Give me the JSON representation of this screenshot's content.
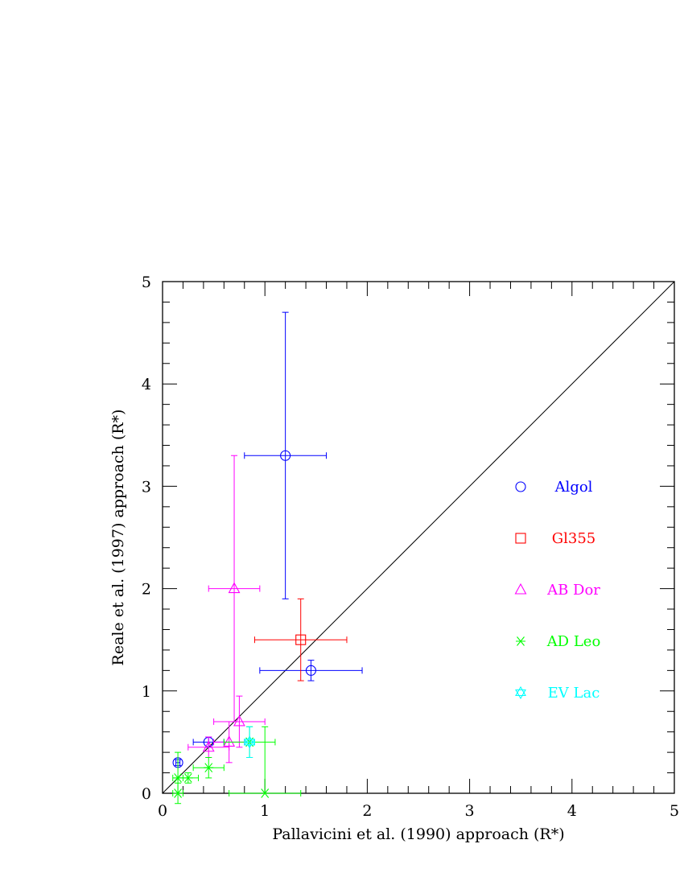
{
  "chart_data": {
    "type": "scatter",
    "xlabel": "Pallavicini et al. (1990) approach (R*)",
    "ylabel": "Reale et al. (1997) approach (R*)",
    "xlim": [
      0,
      5
    ],
    "ylim": [
      0,
      5
    ],
    "x_ticks": [
      "0",
      "1",
      "2",
      "3",
      "4",
      "5"
    ],
    "y_ticks": [
      "0",
      "1",
      "2",
      "3",
      "4",
      "5"
    ],
    "grid": false,
    "legend_position": "right-middle",
    "reference_line": {
      "type": "identity",
      "x": [
        0,
        5
      ],
      "y": [
        0,
        5
      ]
    },
    "series": [
      {
        "name": "Algol",
        "color": "#0000ff",
        "marker": "circle",
        "points": [
          {
            "x": 1.2,
            "xerr": [
              0.4,
              0.4
            ],
            "y": 3.3,
            "yerr": [
              1.4,
              1.4
            ]
          },
          {
            "x": 1.45,
            "xerr": [
              0.5,
              0.5
            ],
            "y": 1.2,
            "yerr": [
              0.1,
              0.1
            ]
          },
          {
            "x": 0.45,
            "xerr": [
              0.15,
              0.15
            ],
            "y": 0.5,
            "yerr": [
              0.05,
              0.05
            ]
          },
          {
            "x": 0.15,
            "xerr": [
              0.02,
              0.02
            ],
            "y": 0.3,
            "yerr": [
              0.03,
              0.03
            ]
          }
        ]
      },
      {
        "name": "Gl355",
        "color": "#ff0000",
        "marker": "square",
        "points": [
          {
            "x": 1.35,
            "xerr": [
              0.45,
              0.45
            ],
            "y": 1.5,
            "yerr": [
              0.4,
              0.4
            ]
          }
        ]
      },
      {
        "name": "AB Dor",
        "color": "#ff00ff",
        "marker": "triangle",
        "points": [
          {
            "x": 0.7,
            "xerr": [
              0.25,
              0.25
            ],
            "y": 2.0,
            "yerr": [
              1.3,
              1.3
            ]
          },
          {
            "x": 0.75,
            "xerr": [
              0.25,
              0.25
            ],
            "y": 0.7,
            "yerr": [
              0.25,
              0.25
            ]
          },
          {
            "x": 0.65,
            "xerr": [
              0.15,
              0.15
            ],
            "y": 0.5,
            "yerr": [
              0.2,
              0.2
            ]
          },
          {
            "x": 0.45,
            "xerr": [
              0.2,
              0.2
            ],
            "y": 0.45,
            "yerr": [
              0.1,
              0.1
            ]
          }
        ]
      },
      {
        "name": "AD Leo",
        "color": "#00ff00",
        "marker": "asterisk",
        "points": [
          {
            "x": 0.45,
            "xerr": [
              0.15,
              0.15
            ],
            "y": 0.25,
            "yerr": [
              0.1,
              0.1
            ]
          },
          {
            "x": 0.25,
            "xerr": [
              0.1,
              0.1
            ],
            "y": 0.15,
            "yerr": [
              0.05,
              0.05
            ]
          },
          {
            "x": 0.15,
            "xerr": [
              0.05,
              0.05
            ],
            "y": 0.15,
            "yerr": [
              0.25,
              0.25
            ]
          },
          {
            "x": 0.15,
            "xerr": [
              0.05,
              0.05
            ],
            "y": 0.0,
            "yerr": [
              0,
              0.1
            ]
          },
          {
            "x": 1.0,
            "xerr": [
              0.35,
              0.35
            ],
            "y": 0.0,
            "yerr": [
              0,
              0.65
            ]
          },
          {
            "x": 0.85,
            "xerr": [
              0.25,
              0.25
            ],
            "y": 0.5,
            "yerr": [
              0.15,
              0.15
            ]
          }
        ]
      },
      {
        "name": "EV Lac",
        "color": "#00ffff",
        "marker": "star",
        "points": [
          {
            "x": 0.85,
            "xerr": [
              0.05,
              0.05
            ],
            "y": 0.5,
            "yerr": [
              0.15,
              0.15
            ]
          }
        ]
      }
    ]
  }
}
